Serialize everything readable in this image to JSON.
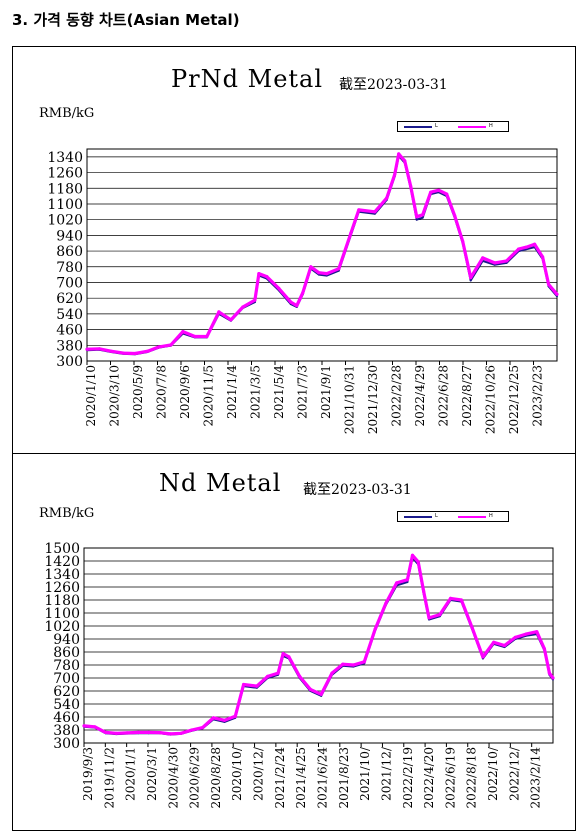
{
  "page": {
    "heading": "3.  가격 동향 차트(Asian Metal)"
  },
  "charts_meta": [
    {
      "title": "PrNd Metal",
      "date_label": "截至2023-03-31",
      "unit": "RMB/kG",
      "legend": [
        {
          "label": "L",
          "color": "#1a1a8c"
        },
        {
          "label": "H",
          "color": "#ff00ff"
        }
      ]
    },
    {
      "title": "Nd Metal",
      "date_label": "截至2023-03-31",
      "unit": "RMB/kG",
      "legend": [
        {
          "label": "L",
          "color": "#1a1a8c"
        },
        {
          "label": "H",
          "color": "#ff00ff"
        }
      ]
    }
  ],
  "chart_data": [
    {
      "type": "line",
      "title": "PrNd Metal",
      "ylabel": "RMB/kG",
      "ylim": [
        300,
        1380
      ],
      "yticks": [
        300,
        380,
        460,
        540,
        620,
        700,
        780,
        860,
        940,
        1020,
        1100,
        1180,
        1260,
        1340
      ],
      "x_tick_labels": [
        "2020/1/10",
        "2020/3/10",
        "2020/5/9",
        "2020/7/8",
        "2020/9/6",
        "2020/11/5",
        "2021/1/4",
        "2021/3/5",
        "2021/5/4",
        "2021/7/3",
        "2021/9/1",
        "2021/10/31",
        "2021/12/30",
        "2022/2/28",
        "2022/4/29",
        "2022/6/28",
        "2022/8/27",
        "2022/10/26",
        "2022/12/25",
        "2023/2/23"
      ],
      "x_range": [
        "2020/1/10",
        "2023/3/31"
      ],
      "grid": true,
      "series": [
        {
          "name": "L",
          "color": "#1a1a8c",
          "points": [
            [
              "2020/1/10",
              355
            ],
            [
              "2020/2/10",
              357
            ],
            [
              "2020/3/10",
              346
            ],
            [
              "2020/4/10",
              336
            ],
            [
              "2020/5/9",
              334
            ],
            [
              "2020/6/10",
              346
            ],
            [
              "2020/7/8",
              368
            ],
            [
              "2020/8/7",
              378
            ],
            [
              "2020/9/6",
              440
            ],
            [
              "2020/10/6",
              420
            ],
            [
              "2020/11/5",
              420
            ],
            [
              "2020/12/5",
              540
            ],
            [
              "2021/1/4",
              505
            ],
            [
              "2021/2/3",
              570
            ],
            [
              "2021/3/5",
              600
            ],
            [
              "2021/3/15",
              735
            ],
            [
              "2021/4/4",
              720
            ],
            [
              "2021/5/4",
              660
            ],
            [
              "2021/6/3",
              590
            ],
            [
              "2021/6/18",
              575
            ],
            [
              "2021/7/3",
              640
            ],
            [
              "2021/7/23",
              770
            ],
            [
              "2021/8/12",
              740
            ],
            [
              "2021/9/1",
              735
            ],
            [
              "2021/10/1",
              760
            ],
            [
              "2021/10/31",
              940
            ],
            [
              "2021/11/20",
              1060
            ],
            [
              "2021/12/30",
              1050
            ],
            [
              "2022/1/29",
              1120
            ],
            [
              "2022/2/18",
              1240
            ],
            [
              "2022/2/28",
              1345
            ],
            [
              "2022/3/15",
              1310
            ],
            [
              "2022/3/30",
              1180
            ],
            [
              "2022/4/14",
              1020
            ],
            [
              "2022/4/29",
              1030
            ],
            [
              "2022/5/19",
              1150
            ],
            [
              "2022/6/8",
              1160
            ],
            [
              "2022/6/28",
              1140
            ],
            [
              "2022/7/18",
              1030
            ],
            [
              "2022/8/7",
              900
            ],
            [
              "2022/8/27",
              710
            ],
            [
              "2022/9/26",
              810
            ],
            [
              "2022/10/26",
              790
            ],
            [
              "2022/11/25",
              800
            ],
            [
              "2022/12/25",
              860
            ],
            [
              "2023/1/14",
              870
            ],
            [
              "2023/2/3",
              880
            ],
            [
              "2023/2/23",
              820
            ],
            [
              "2023/3/10",
              680
            ],
            [
              "2023/3/31",
              630
            ]
          ]
        },
        {
          "name": "H",
          "color": "#ff00ff",
          "points": [
            [
              "2020/1/10",
              360
            ],
            [
              "2020/2/10",
              362
            ],
            [
              "2020/3/10",
              350
            ],
            [
              "2020/4/10",
              340
            ],
            [
              "2020/5/9",
              338
            ],
            [
              "2020/6/10",
              350
            ],
            [
              "2020/7/8",
              372
            ],
            [
              "2020/8/7",
              382
            ],
            [
              "2020/9/6",
              450
            ],
            [
              "2020/10/6",
              425
            ],
            [
              "2020/11/5",
              425
            ],
            [
              "2020/12/5",
              550
            ],
            [
              "2021/1/4",
              510
            ],
            [
              "2021/2/3",
              575
            ],
            [
              "2021/3/5",
              610
            ],
            [
              "2021/3/15",
              745
            ],
            [
              "2021/4/4",
              730
            ],
            [
              "2021/5/4",
              670
            ],
            [
              "2021/6/3",
              600
            ],
            [
              "2021/6/18",
              582
            ],
            [
              "2021/7/3",
              648
            ],
            [
              "2021/7/23",
              780
            ],
            [
              "2021/8/12",
              750
            ],
            [
              "2021/9/1",
              745
            ],
            [
              "2021/10/1",
              770
            ],
            [
              "2021/10/31",
              950
            ],
            [
              "2021/11/20",
              1070
            ],
            [
              "2021/12/30",
              1060
            ],
            [
              "2022/1/29",
              1130
            ],
            [
              "2022/2/18",
              1250
            ],
            [
              "2022/2/28",
              1355
            ],
            [
              "2022/3/15",
              1320
            ],
            [
              "2022/3/30",
              1190
            ],
            [
              "2022/4/14",
              1035
            ],
            [
              "2022/4/29",
              1045
            ],
            [
              "2022/5/19",
              1160
            ],
            [
              "2022/6/8",
              1170
            ],
            [
              "2022/6/28",
              1150
            ],
            [
              "2022/7/18",
              1040
            ],
            [
              "2022/8/7",
              910
            ],
            [
              "2022/8/27",
              725
            ],
            [
              "2022/9/26",
              825
            ],
            [
              "2022/10/26",
              800
            ],
            [
              "2022/11/25",
              810
            ],
            [
              "2022/12/25",
              870
            ],
            [
              "2023/1/14",
              880
            ],
            [
              "2023/2/3",
              895
            ],
            [
              "2023/2/23",
              830
            ],
            [
              "2023/3/10",
              690
            ],
            [
              "2023/3/31",
              640
            ]
          ]
        }
      ]
    },
    {
      "type": "line",
      "title": "Nd Metal",
      "ylabel": "RMB/kG",
      "ylim": [
        300,
        1500
      ],
      "yticks": [
        300,
        380,
        460,
        540,
        620,
        700,
        780,
        860,
        940,
        1020,
        1100,
        1180,
        1260,
        1340,
        1420,
        1500
      ],
      "x_tick_labels": [
        "2019/9/3",
        "2019/11/2",
        "2020/1/1",
        "2020/3/1",
        "2020/4/30",
        "2020/6/29",
        "2020/8/28",
        "2020/10/",
        "2020/12/",
        "2021/2/24",
        "2021/4/25",
        "2021/6/24",
        "2021/8/23",
        "2021/10/",
        "2021/12/",
        "2022/2/19",
        "2022/4/20",
        "2022/6/19",
        "2022/8/18",
        "2022/10/",
        "2022/12/",
        "2023/2/14"
      ],
      "x_range": [
        "2019/9/3",
        "2023/3/31"
      ],
      "grid": true,
      "series": [
        {
          "name": "L",
          "color": "#1a1a8c",
          "points": [
            [
              "2019/9/3",
              400
            ],
            [
              "2019/10/3",
              395
            ],
            [
              "2019/11/2",
              360
            ],
            [
              "2019/12/2",
              355
            ],
            [
              "2020/1/1",
              358
            ],
            [
              "2020/2/1",
              360
            ],
            [
              "2020/3/1",
              360
            ],
            [
              "2020/4/1",
              360
            ],
            [
              "2020/4/30",
              352
            ],
            [
              "2020/5/30",
              356
            ],
            [
              "2020/6/29",
              375
            ],
            [
              "2020/7/29",
              390
            ],
            [
              "2020/8/28",
              445
            ],
            [
              "2020/9/28",
              430
            ],
            [
              "2020/10/28",
              455
            ],
            [
              "2020/11/20",
              650
            ],
            [
              "2020/12/27",
              640
            ],
            [
              "2021/1/26",
              700
            ],
            [
              "2021/2/24",
              720
            ],
            [
              "2021/3/10",
              835
            ],
            [
              "2021/3/26",
              820
            ],
            [
              "2021/4/25",
              700
            ],
            [
              "2021/5/25",
              620
            ],
            [
              "2021/6/24",
              590
            ],
            [
              "2021/7/24",
              720
            ],
            [
              "2021/8/23",
              775
            ],
            [
              "2021/9/22",
              770
            ],
            [
              "2021/10/22",
              790
            ],
            [
              "2021/11/21",
              990
            ],
            [
              "2021/12/21",
              1150
            ],
            [
              "2022/1/20",
              1270
            ],
            [
              "2022/2/19",
              1290
            ],
            [
              "2022/3/5",
              1440
            ],
            [
              "2022/3/21",
              1400
            ],
            [
              "2022/4/5",
              1220
            ],
            [
              "2022/4/20",
              1060
            ],
            [
              "2022/5/20",
              1080
            ],
            [
              "2022/6/19",
              1180
            ],
            [
              "2022/7/19",
              1170
            ],
            [
              "2022/8/18",
              1000
            ],
            [
              "2022/9/17",
              820
            ],
            [
              "2022/10/17",
              910
            ],
            [
              "2022/11/16",
              890
            ],
            [
              "2022/12/16",
              940
            ],
            [
              "2023/1/15",
              960
            ],
            [
              "2023/2/14",
              970
            ],
            [
              "2023/3/7",
              870
            ],
            [
              "2023/3/21",
              720
            ],
            [
              "2023/3/31",
              690
            ]
          ]
        },
        {
          "name": "H",
          "color": "#ff00ff",
          "points": [
            [
              "2019/9/3",
              405
            ],
            [
              "2019/10/3",
              400
            ],
            [
              "2019/11/2",
              365
            ],
            [
              "2019/12/2",
              360
            ],
            [
              "2020/1/1",
              362
            ],
            [
              "2020/2/1",
              365
            ],
            [
              "2020/3/1",
              365
            ],
            [
              "2020/4/1",
              364
            ],
            [
              "2020/4/30",
              356
            ],
            [
              "2020/5/30",
              360
            ],
            [
              "2020/6/29",
              380
            ],
            [
              "2020/7/29",
              395
            ],
            [
              "2020/8/28",
              455
            ],
            [
              "2020/9/28",
              440
            ],
            [
              "2020/10/28",
              465
            ],
            [
              "2020/11/20",
              660
            ],
            [
              "2020/12/27",
              650
            ],
            [
              "2021/1/26",
              710
            ],
            [
              "2021/2/24",
              730
            ],
            [
              "2021/3/10",
              850
            ],
            [
              "2021/3/26",
              830
            ],
            [
              "2021/4/25",
              710
            ],
            [
              "2021/5/25",
              630
            ],
            [
              "2021/6/24",
              600
            ],
            [
              "2021/7/24",
              730
            ],
            [
              "2021/8/23",
              785
            ],
            [
              "2021/9/22",
              780
            ],
            [
              "2021/10/22",
              800
            ],
            [
              "2021/11/21",
              1000
            ],
            [
              "2021/12/21",
              1160
            ],
            [
              "2022/1/20",
              1285
            ],
            [
              "2022/2/19",
              1305
            ],
            [
              "2022/3/5",
              1455
            ],
            [
              "2022/3/21",
              1415
            ],
            [
              "2022/4/5",
              1235
            ],
            [
              "2022/4/20",
              1070
            ],
            [
              "2022/5/20",
              1090
            ],
            [
              "2022/6/19",
              1190
            ],
            [
              "2022/7/19",
              1180
            ],
            [
              "2022/8/18",
              1010
            ],
            [
              "2022/9/17",
              830
            ],
            [
              "2022/10/17",
              920
            ],
            [
              "2022/11/16",
              900
            ],
            [
              "2022/12/16",
              950
            ],
            [
              "2023/1/15",
              970
            ],
            [
              "2023/2/14",
              985
            ],
            [
              "2023/3/7",
              880
            ],
            [
              "2023/3/21",
              730
            ],
            [
              "2023/3/31",
              700
            ]
          ]
        }
      ]
    }
  ]
}
